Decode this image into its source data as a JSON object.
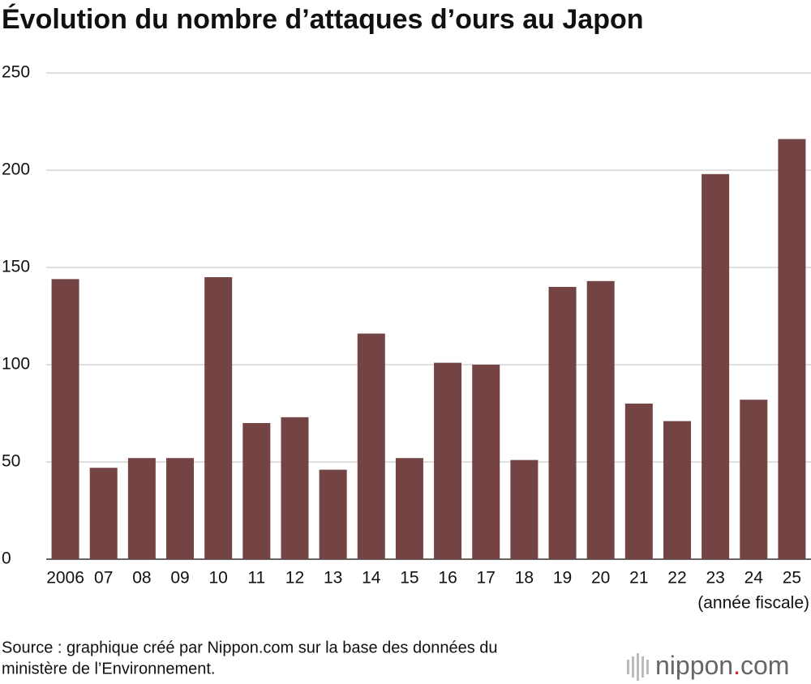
{
  "chart_data": {
    "type": "bar",
    "title": "Évolution du nombre d’attaques d’ours au Japon",
    "x_label": "(année fiscale)",
    "categories": [
      "2006",
      "07",
      "08",
      "09",
      "10",
      "11",
      "12",
      "13",
      "14",
      "15",
      "16",
      "17",
      "18",
      "19",
      "20",
      "21",
      "22",
      "23",
      "24",
      "25"
    ],
    "values": [
      144,
      47,
      52,
      52,
      145,
      70,
      73,
      46,
      116,
      52,
      101,
      100,
      51,
      140,
      143,
      80,
      71,
      198,
      82,
      216
    ],
    "color": "#744445",
    "ylim": [
      0,
      250
    ],
    "yticks": [
      0,
      50,
      100,
      150,
      200,
      250
    ],
    "grid": true,
    "source": [
      "Source : graphique créé par Nippon.com sur la base des données du",
      "ministère de l’Environnement."
    ],
    "logo": {
      "name": "nippon",
      "dot": ".",
      "suffix": "com"
    }
  }
}
